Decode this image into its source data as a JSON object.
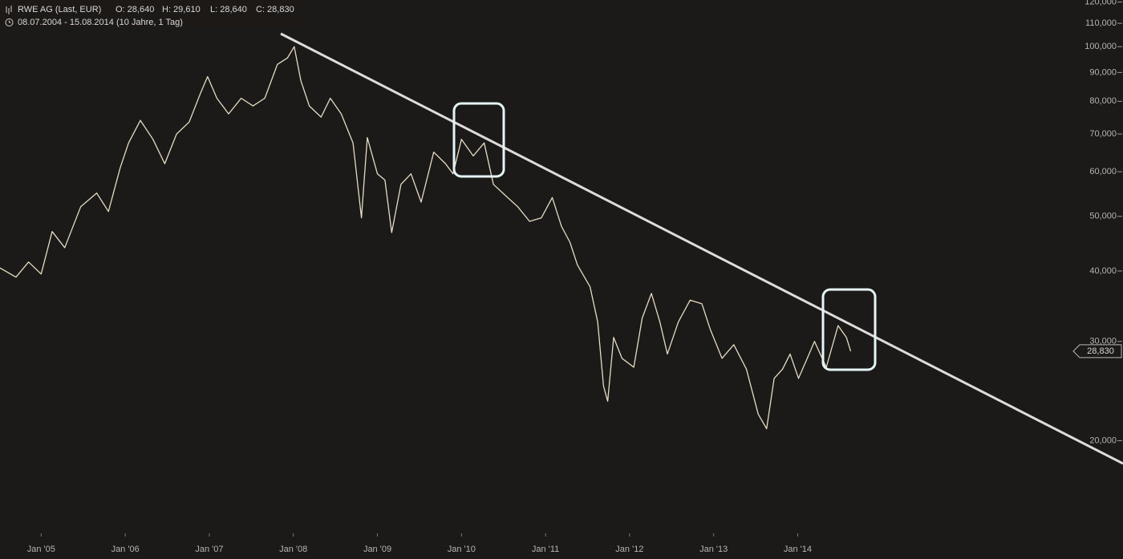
{
  "chart_data": {
    "type": "line",
    "title": "RWE AG (Last, EUR)",
    "ohlc": [
      "O: 28,640",
      "H: 29,610",
      "L: 28,640",
      "C: 28,830"
    ],
    "period": "08.07.2004 - 15.08.2014 (10 Jahre, 1 Tag)",
    "log_scale": true,
    "grid": false,
    "color": "#e6dcc4",
    "x": [
      2004.51,
      2004.7,
      2004.85,
      2005.0,
      2005.13,
      2005.28,
      2005.47,
      2005.66,
      2005.8,
      2005.94,
      2006.04,
      2006.18,
      2006.33,
      2006.47,
      2006.61,
      2006.76,
      2006.9,
      2006.98,
      2007.09,
      2007.23,
      2007.38,
      2007.52,
      2007.66,
      2007.81,
      2007.93,
      2008.01,
      2008.09,
      2008.19,
      2008.33,
      2008.44,
      2008.57,
      2008.71,
      2008.81,
      2008.88,
      2009.0,
      2009.09,
      2009.17,
      2009.28,
      2009.4,
      2009.52,
      2009.67,
      2009.81,
      2009.9,
      2010.0,
      2010.14,
      2010.27,
      2010.38,
      2010.52,
      2010.67,
      2010.81,
      2010.95,
      2011.08,
      2011.19,
      2011.29,
      2011.38,
      2011.53,
      2011.62,
      2011.69,
      2011.74,
      2011.81,
      2011.91,
      2012.05,
      2012.15,
      2012.26,
      2012.36,
      2012.45,
      2012.58,
      2012.72,
      2012.86,
      2012.96,
      2013.1,
      2013.24,
      2013.39,
      2013.53,
      2013.63,
      2013.72,
      2013.82,
      2013.91,
      2014.01,
      2014.1,
      2014.2,
      2014.34,
      2014.48,
      2014.58,
      2014.63
    ],
    "values": [
      40500,
      39000,
      41500,
      39500,
      47000,
      44000,
      52000,
      55000,
      51000,
      61000,
      67500,
      74000,
      68500,
      62000,
      70000,
      73500,
      83000,
      88500,
      81000,
      76000,
      81000,
      78500,
      81000,
      93000,
      95500,
      100000,
      87000,
      78500,
      75000,
      81000,
      76000,
      67500,
      49700,
      69000,
      59500,
      58000,
      46800,
      57000,
      59500,
      53000,
      65000,
      62000,
      59500,
      68500,
      64000,
      67500,
      57000,
      54500,
      52000,
      49000,
      49700,
      54000,
      48000,
      45000,
      41000,
      37500,
      32500,
      25000,
      23500,
      30500,
      28000,
      27000,
      33000,
      36500,
      32500,
      28500,
      32500,
      35500,
      35000,
      31500,
      28000,
      29600,
      26800,
      22300,
      21000,
      25800,
      26800,
      28500,
      25800,
      27700,
      30000,
      27000,
      32000,
      30500,
      28830
    ],
    "xlim": [
      2004.51,
      2017.87
    ],
    "xticks": [
      {
        "value": 2005,
        "label": "Jan '05"
      },
      {
        "value": 2006,
        "label": "Jan '06"
      },
      {
        "value": 2007,
        "label": "Jan '07"
      },
      {
        "value": 2008,
        "label": "Jan '08"
      },
      {
        "value": 2009,
        "label": "Jan '09"
      },
      {
        "value": 2010,
        "label": "Jan '10"
      },
      {
        "value": 2011,
        "label": "Jan '11"
      },
      {
        "value": 2012,
        "label": "Jan '12"
      },
      {
        "value": 2013,
        "label": "Jan '13"
      },
      {
        "value": 2014,
        "label": "Jan '14"
      }
    ],
    "ylim": [
      13700,
      121000
    ],
    "yticks": [
      {
        "value": 20000,
        "label": "20,000"
      },
      {
        "value": 30000,
        "label": "30,000"
      },
      {
        "value": 40000,
        "label": "40,000"
      },
      {
        "value": 50000,
        "label": "50,000"
      },
      {
        "value": 60000,
        "label": "60,000"
      },
      {
        "value": 70000,
        "label": "70,000"
      },
      {
        "value": 80000,
        "label": "80,000"
      },
      {
        "value": 90000,
        "label": "90,000"
      },
      {
        "value": 100000,
        "label": "100,000"
      },
      {
        "value": 110000,
        "label": "110,000"
      },
      {
        "value": 120000,
        "label": "120,000"
      }
    ],
    "last_price": {
      "value": 28830,
      "label": "28,830"
    }
  }
}
